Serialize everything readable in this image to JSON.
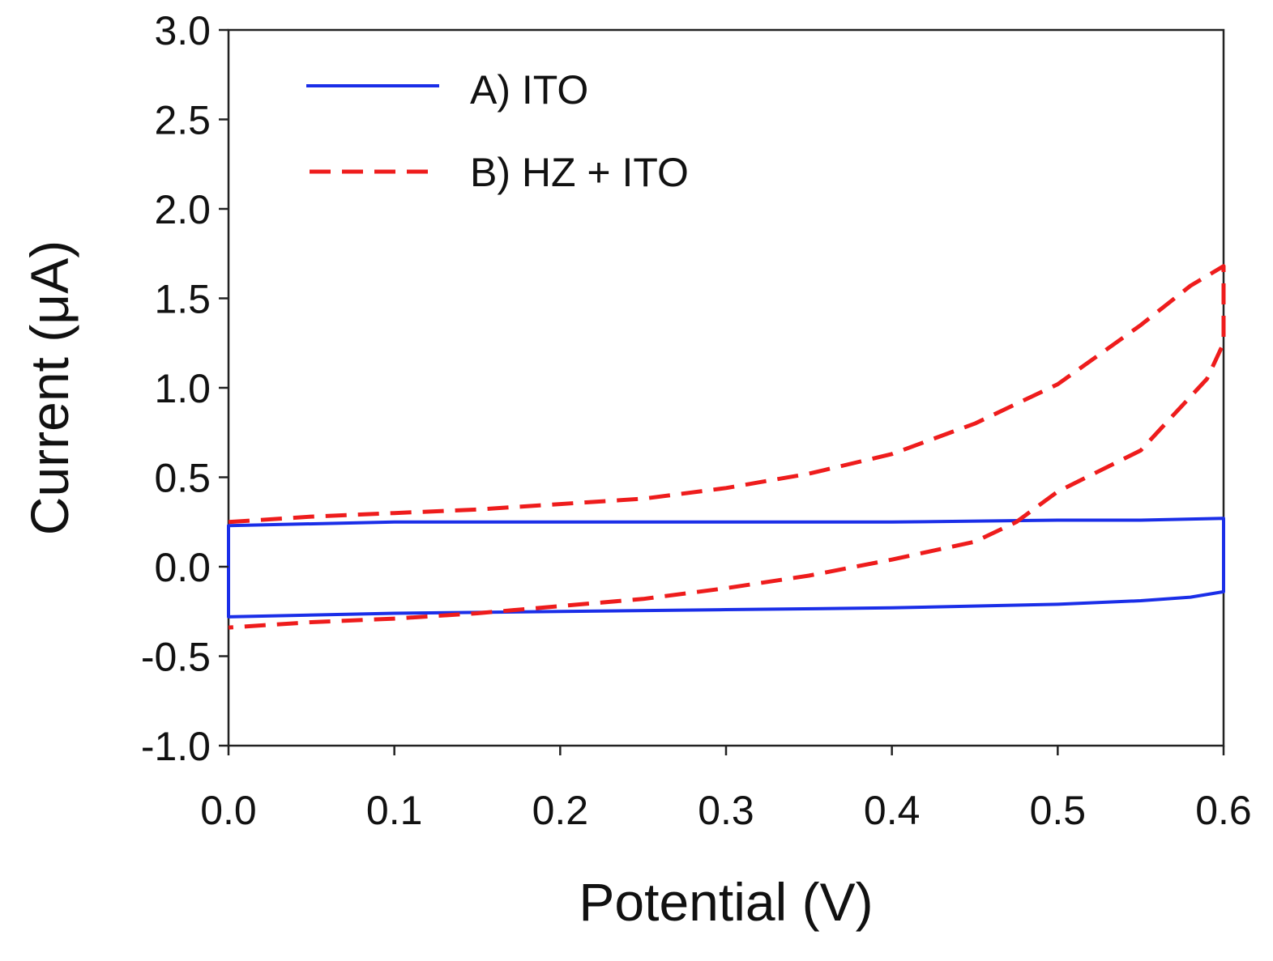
{
  "chart_data": {
    "type": "line",
    "title": "",
    "xlabel": "Potential (V)",
    "ylabel": "Current (μA)",
    "xlim": [
      0.0,
      0.6
    ],
    "ylim": [
      -1.0,
      3.0
    ],
    "x_ticks": [
      "0.0",
      "0.1",
      "0.2",
      "0.3",
      "0.4",
      "0.5",
      "0.6"
    ],
    "y_ticks": [
      "-1.0",
      "-0.5",
      "0.0",
      "0.5",
      "1.0",
      "1.5",
      "2.0",
      "2.5",
      "3.0"
    ],
    "grid": false,
    "legend_position": "top-left",
    "series": [
      {
        "name": "A) ITO",
        "color": "#1a2ee8",
        "style": "solid",
        "x": [
          0.0,
          0.0,
          0.1,
          0.2,
          0.3,
          0.4,
          0.5,
          0.55,
          0.6,
          0.6,
          0.6,
          0.58,
          0.55,
          0.5,
          0.4,
          0.3,
          0.2,
          0.1,
          0.0,
          0.0
        ],
        "y": [
          -0.28,
          0.23,
          0.25,
          0.25,
          0.25,
          0.25,
          0.26,
          0.26,
          0.27,
          0.12,
          -0.14,
          -0.17,
          -0.19,
          -0.21,
          -0.23,
          -0.24,
          -0.25,
          -0.26,
          -0.28,
          0.23
        ]
      },
      {
        "name": "B) HZ + ITO",
        "color": "#ee1c1c",
        "style": "dashed",
        "x": [
          0.0,
          0.05,
          0.1,
          0.15,
          0.2,
          0.25,
          0.3,
          0.35,
          0.4,
          0.45,
          0.5,
          0.55,
          0.58,
          0.6,
          0.6,
          0.59,
          0.57,
          0.55,
          0.5,
          0.475,
          0.45,
          0.4,
          0.35,
          0.3,
          0.25,
          0.2,
          0.15,
          0.1,
          0.05,
          0.0
        ],
        "y": [
          0.25,
          0.28,
          0.3,
          0.32,
          0.35,
          0.38,
          0.44,
          0.52,
          0.63,
          0.8,
          1.02,
          1.35,
          1.57,
          1.68,
          1.25,
          1.05,
          0.85,
          0.65,
          0.42,
          0.25,
          0.14,
          0.04,
          -0.05,
          -0.12,
          -0.18,
          -0.22,
          -0.26,
          -0.29,
          -0.31,
          -0.34
        ]
      }
    ]
  }
}
